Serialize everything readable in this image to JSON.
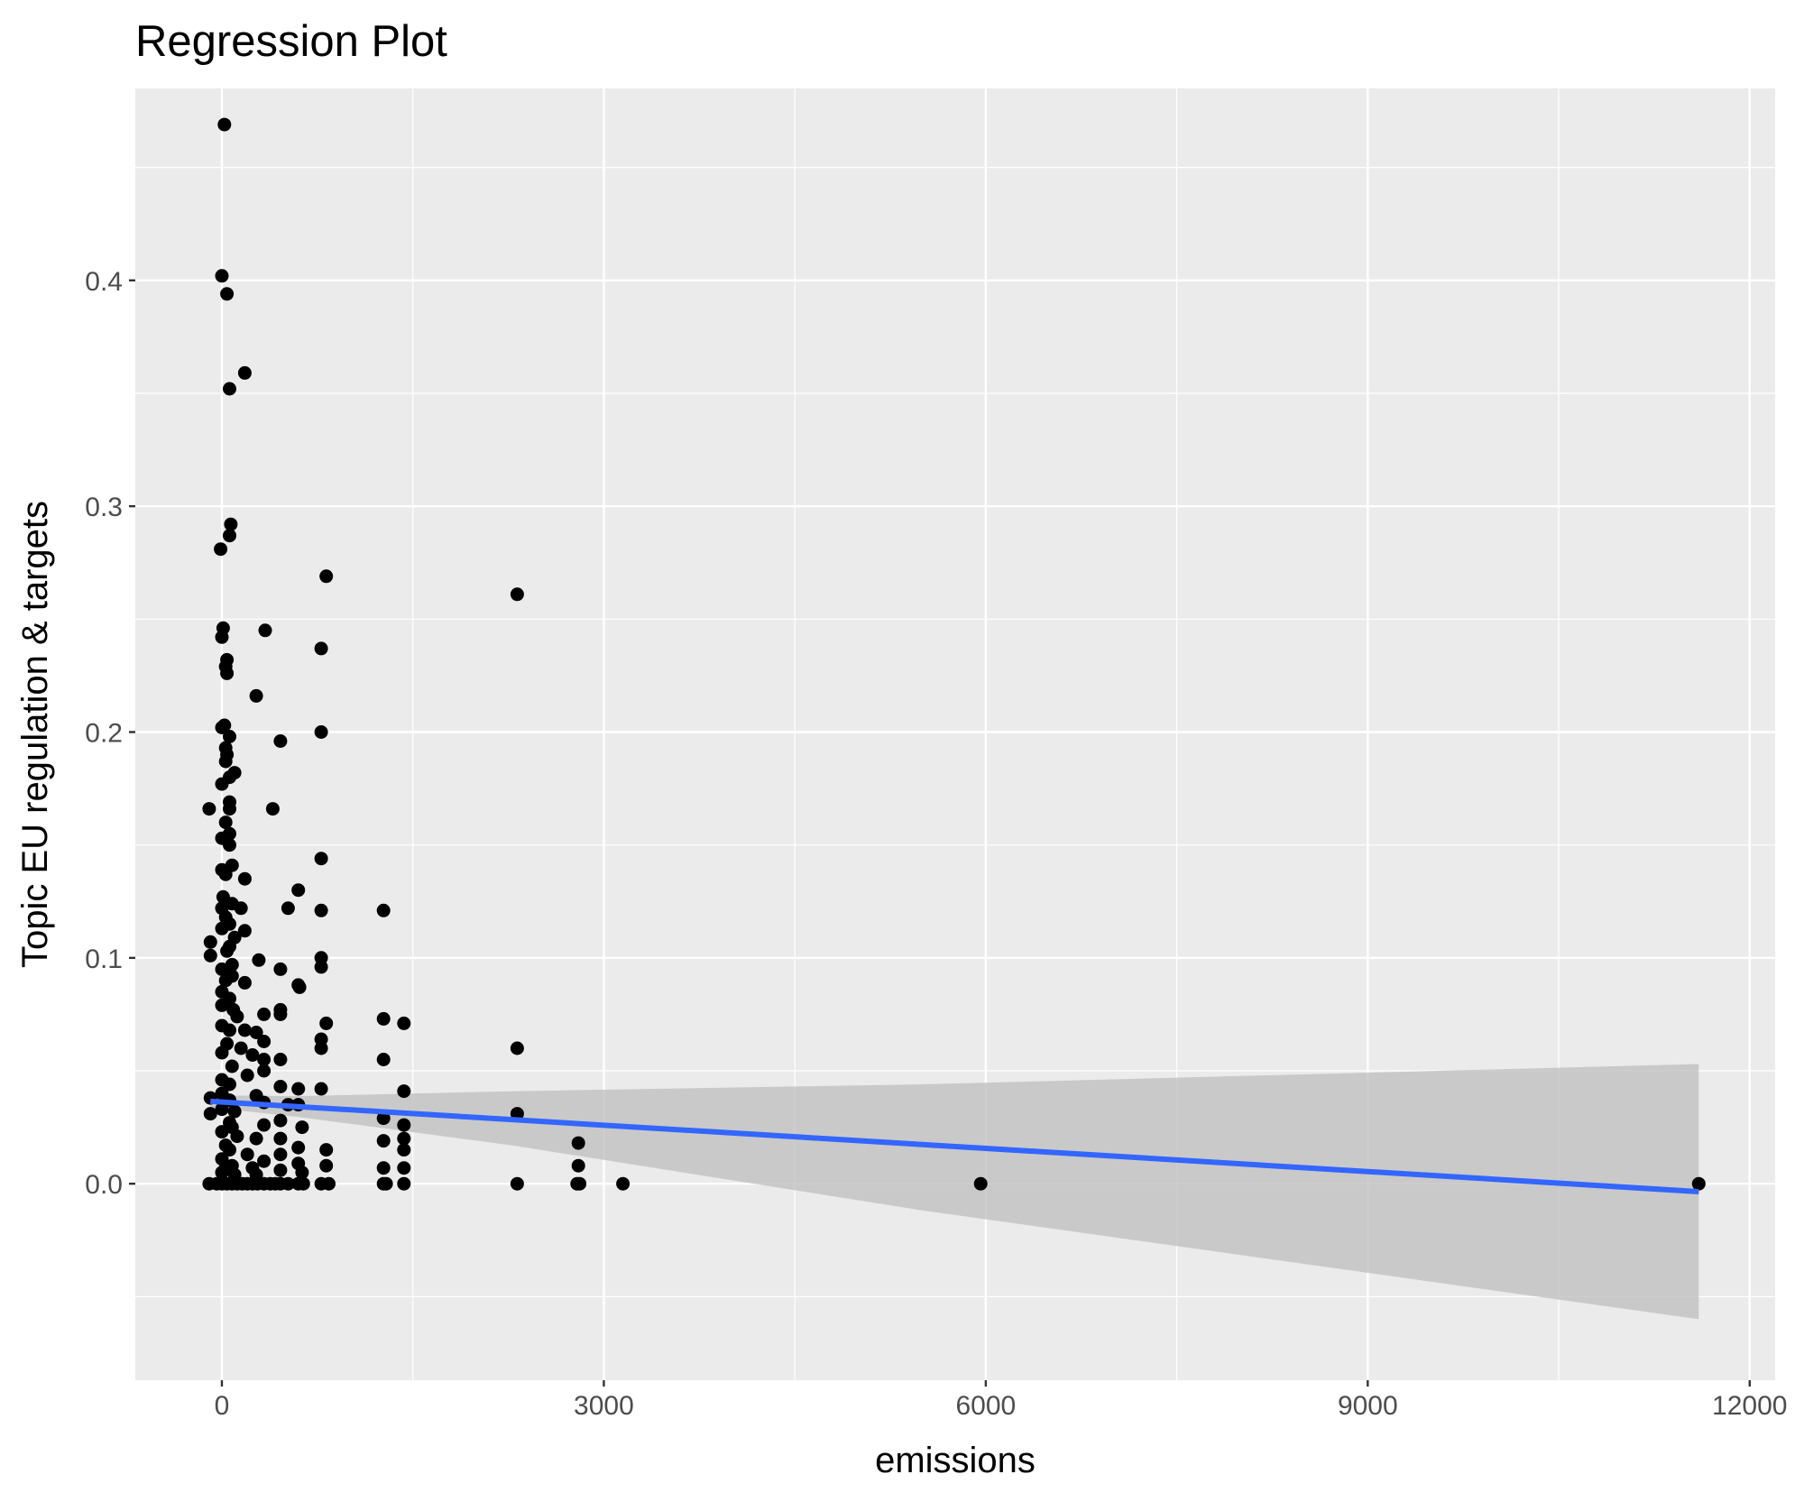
{
  "chart_data": {
    "type": "scatter",
    "title": "Regression Plot",
    "xlabel": "emissions",
    "ylabel": "Topic EU regulation & targets",
    "xlim": [
      -680,
      12200
    ],
    "ylim": [
      -0.087,
      0.485
    ],
    "x_ticks": [
      0,
      3000,
      6000,
      9000,
      12000
    ],
    "x_tick_labels": [
      "0",
      "3000",
      "6000",
      "9000",
      "12000"
    ],
    "y_ticks": [
      0.0,
      0.1,
      0.2,
      0.3,
      0.4
    ],
    "y_tick_labels": [
      "0.0",
      "0.1",
      "0.2",
      "0.3",
      "0.4"
    ],
    "grid": true,
    "colors": {
      "panel_background": "#ebebeb",
      "grid": "#ffffff",
      "points": "#000000",
      "regression_line": "#3366ff",
      "confidence_band": "#c0c0c0"
    },
    "regression": {
      "x": [
        -90,
        11600
      ],
      "y": [
        0.0365,
        -0.0035
      ]
    },
    "confidence_band": {
      "x": [
        -90,
        600,
        2300,
        5500,
        11600
      ],
      "lower": [
        0.0338,
        0.0296,
        0.0168,
        -0.0118,
        -0.06
      ],
      "upper": [
        0.0392,
        0.0388,
        0.041,
        0.044,
        0.053
      ]
    },
    "points": [
      [
        20,
        0.469
      ],
      [
        0,
        0.402
      ],
      [
        40,
        0.394
      ],
      [
        180,
        0.359
      ],
      [
        60,
        0.352
      ],
      [
        70,
        0.292
      ],
      [
        60,
        0.287
      ],
      [
        -10,
        0.281
      ],
      [
        820,
        0.269
      ],
      [
        2320,
        0.261
      ],
      [
        10,
        0.246
      ],
      [
        340,
        0.245
      ],
      [
        0,
        0.242
      ],
      [
        780,
        0.237
      ],
      [
        40,
        0.232
      ],
      [
        30,
        0.229
      ],
      [
        40,
        0.226
      ],
      [
        270,
        0.216
      ],
      [
        20,
        0.203
      ],
      [
        0,
        0.202
      ],
      [
        780,
        0.2
      ],
      [
        60,
        0.198
      ],
      [
        30,
        0.193
      ],
      [
        460,
        0.196
      ],
      [
        40,
        0.19
      ],
      [
        30,
        0.187
      ],
      [
        100,
        0.182
      ],
      [
        60,
        0.18
      ],
      [
        0,
        0.177
      ],
      [
        60,
        0.169
      ],
      [
        60,
        0.166
      ],
      [
        -100,
        0.166
      ],
      [
        400,
        0.166
      ],
      [
        30,
        0.16
      ],
      [
        60,
        0.155
      ],
      [
        0,
        0.153
      ],
      [
        60,
        0.15
      ],
      [
        780,
        0.144
      ],
      [
        80,
        0.141
      ],
      [
        0,
        0.139
      ],
      [
        180,
        0.135
      ],
      [
        30,
        0.137
      ],
      [
        600,
        0.13
      ],
      [
        10,
        0.127
      ],
      [
        80,
        0.124
      ],
      [
        0,
        0.122
      ],
      [
        150,
        0.122
      ],
      [
        520,
        0.122
      ],
      [
        780,
        0.121
      ],
      [
        1270,
        0.121
      ],
      [
        30,
        0.118
      ],
      [
        60,
        0.115
      ],
      [
        0,
        0.113
      ],
      [
        180,
        0.112
      ],
      [
        100,
        0.109
      ],
      [
        -90,
        0.107
      ],
      [
        60,
        0.105
      ],
      [
        40,
        0.103
      ],
      [
        -90,
        0.101
      ],
      [
        780,
        0.1
      ],
      [
        290,
        0.099
      ],
      [
        80,
        0.097
      ],
      [
        0,
        0.095
      ],
      [
        460,
        0.095
      ],
      [
        780,
        0.096
      ],
      [
        80,
        0.092
      ],
      [
        30,
        0.09
      ],
      [
        600,
        0.088
      ],
      [
        610,
        0.087
      ],
      [
        180,
        0.089
      ],
      [
        0,
        0.085
      ],
      [
        60,
        0.082
      ],
      [
        0,
        0.079
      ],
      [
        90,
        0.077
      ],
      [
        460,
        0.077
      ],
      [
        460,
        0.075
      ],
      [
        330,
        0.075
      ],
      [
        120,
        0.074
      ],
      [
        1270,
        0.073
      ],
      [
        1430,
        0.071
      ],
      [
        820,
        0.071
      ],
      [
        0,
        0.07
      ],
      [
        60,
        0.068
      ],
      [
        180,
        0.068
      ],
      [
        270,
        0.067
      ],
      [
        780,
        0.064
      ],
      [
        330,
        0.063
      ],
      [
        40,
        0.062
      ],
      [
        150,
        0.06
      ],
      [
        2320,
        0.06
      ],
      [
        780,
        0.06
      ],
      [
        0,
        0.058
      ],
      [
        240,
        0.057
      ],
      [
        330,
        0.055
      ],
      [
        460,
        0.055
      ],
      [
        1270,
        0.055
      ],
      [
        80,
        0.052
      ],
      [
        330,
        0.05
      ],
      [
        200,
        0.048
      ],
      [
        0,
        0.046
      ],
      [
        60,
        0.044
      ],
      [
        460,
        0.043
      ],
      [
        600,
        0.042
      ],
      [
        780,
        0.042
      ],
      [
        1430,
        0.041
      ],
      [
        0,
        0.04
      ],
      [
        270,
        0.039
      ],
      [
        -90,
        0.038
      ],
      [
        60,
        0.037
      ],
      [
        330,
        0.036
      ],
      [
        520,
        0.035
      ],
      [
        600,
        0.035
      ],
      [
        0,
        0.033
      ],
      [
        100,
        0.032
      ],
      [
        -90,
        0.031
      ],
      [
        2320,
        0.031
      ],
      [
        1270,
        0.029
      ],
      [
        460,
        0.028
      ],
      [
        60,
        0.027
      ],
      [
        330,
        0.026
      ],
      [
        1430,
        0.026
      ],
      [
        80,
        0.025
      ],
      [
        630,
        0.025
      ],
      [
        0,
        0.023
      ],
      [
        120,
        0.021
      ],
      [
        270,
        0.02
      ],
      [
        460,
        0.02
      ],
      [
        1430,
        0.02
      ],
      [
        1270,
        0.019
      ],
      [
        2800,
        0.018
      ],
      [
        30,
        0.017
      ],
      [
        600,
        0.016
      ],
      [
        60,
        0.015
      ],
      [
        820,
        0.015
      ],
      [
        1430,
        0.015
      ],
      [
        200,
        0.013
      ],
      [
        460,
        0.013
      ],
      [
        0,
        0.011
      ],
      [
        330,
        0.01
      ],
      [
        600,
        0.009
      ],
      [
        80,
        0.008
      ],
      [
        820,
        0.008
      ],
      [
        2800,
        0.008
      ],
      [
        30,
        0.007
      ],
      [
        240,
        0.007
      ],
      [
        1270,
        0.007
      ],
      [
        1430,
        0.007
      ],
      [
        460,
        0.006
      ],
      [
        0,
        0.005
      ],
      [
        630,
        0.005
      ],
      [
        100,
        0.004
      ],
      [
        270,
        0.004
      ],
      [
        -100,
        0.0
      ],
      [
        -40,
        0.0
      ],
      [
        0,
        0.0
      ],
      [
        40,
        0.0
      ],
      [
        80,
        0.0
      ],
      [
        120,
        0.0
      ],
      [
        160,
        0.0
      ],
      [
        200,
        0.0
      ],
      [
        240,
        0.0
      ],
      [
        280,
        0.0
      ],
      [
        330,
        0.0
      ],
      [
        380,
        0.0
      ],
      [
        420,
        0.0
      ],
      [
        460,
        0.0
      ],
      [
        520,
        0.0
      ],
      [
        600,
        0.0
      ],
      [
        640,
        0.0
      ],
      [
        780,
        0.0
      ],
      [
        840,
        0.0
      ],
      [
        1270,
        0.0
      ],
      [
        1290,
        0.0
      ],
      [
        1430,
        0.0
      ],
      [
        2320,
        0.0
      ],
      [
        2790,
        0.0
      ],
      [
        2810,
        0.0
      ],
      [
        3150,
        0.0
      ],
      [
        5960,
        0.0
      ],
      [
        11600,
        0.0
      ]
    ]
  }
}
